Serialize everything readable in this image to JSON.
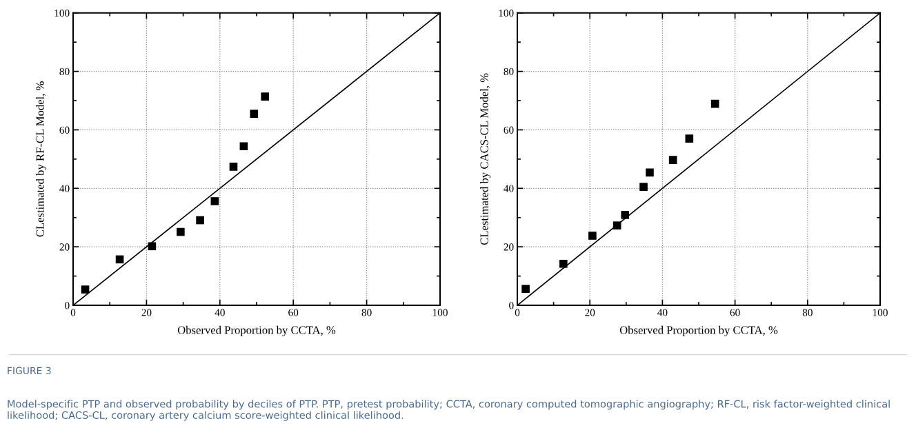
{
  "chart_data": [
    {
      "type": "scatter",
      "xlabel": "Observed Proportion by CCTA, %",
      "ylabel": "CLestimated by RF-CL Model, %",
      "xlim": [
        0,
        100
      ],
      "ylim": [
        0,
        100
      ],
      "xticks": [
        0,
        {
          "value": 10,
          "label": null
        },
        20,
        {
          "value": 30,
          "label": null
        },
        40,
        {
          "value": 50,
          "label": null
        },
        60,
        {
          "value": 70,
          "label": null
        },
        80,
        {
          "value": 90,
          "label": null
        },
        100
      ],
      "yticks": [
        0,
        {
          "value": 10,
          "label": null
        },
        20,
        {
          "value": 30,
          "label": null
        },
        40,
        {
          "value": 50,
          "label": null
        },
        60,
        {
          "value": 70,
          "label": null
        },
        80,
        {
          "value": 90,
          "label": null
        },
        100
      ],
      "grid": true,
      "series": [
        {
          "marker": "square",
          "color": "#000000",
          "x": [
            3.3,
            12.7,
            21.5,
            29.3,
            34.6,
            38.6,
            43.7,
            46.5,
            49.3,
            52.3
          ],
          "values": [
            5.4,
            15.7,
            20.2,
            25.1,
            29.1,
            35.6,
            47.4,
            54.4,
            65.5,
            71.4
          ]
        },
        {
          "type": "line",
          "color": "#000000",
          "x": [
            0,
            100
          ],
          "values": [
            0,
            100
          ]
        }
      ],
      "annotations": [
        "FIGURE 3",
        "Model-specific PTP and observed probability by deciles of PTP. PTP, pretest probability; CCTA, coronary computed tomographic angiography; RF-CL, risk factor-weighted clinical likelihood; CACS-CL, coronary artery calcium score-weighted clinical likelihood."
      ]
    },
    {
      "type": "scatter",
      "xlabel": "Observed Proportion by CCTA, %",
      "ylabel": "CLestimated by CACS-CL Model, %",
      "xlim": [
        0,
        100
      ],
      "ylim": [
        0,
        100
      ],
      "xticks": [
        0,
        {
          "value": 10,
          "label": null
        },
        20,
        {
          "value": 30,
          "label": null
        },
        40,
        {
          "value": 50,
          "label": null
        },
        60,
        {
          "value": 70,
          "label": null
        },
        80,
        {
          "value": 90,
          "label": null
        },
        100
      ],
      "yticks": [
        0,
        {
          "value": 10,
          "label": null
        },
        20,
        {
          "value": 30,
          "label": null
        },
        40,
        {
          "value": 50,
          "label": null
        },
        60,
        {
          "value": 70,
          "label": null
        },
        80,
        {
          "value": 90,
          "label": null
        },
        100
      ],
      "grid": true,
      "series": [
        {
          "marker": "square",
          "color": "#000000",
          "x": [
            2.3,
            12.7,
            20.7,
            27.5,
            29.7,
            34.8,
            36.5,
            42.9,
            47.4,
            54.5
          ],
          "values": [
            5.6,
            14.2,
            23.8,
            27.3,
            30.9,
            40.5,
            45.4,
            49.7,
            57.0,
            68.9
          ]
        },
        {
          "type": "line",
          "color": "#000000",
          "x": [
            0,
            100
          ],
          "values": [
            0,
            100
          ]
        }
      ]
    }
  ]
}
